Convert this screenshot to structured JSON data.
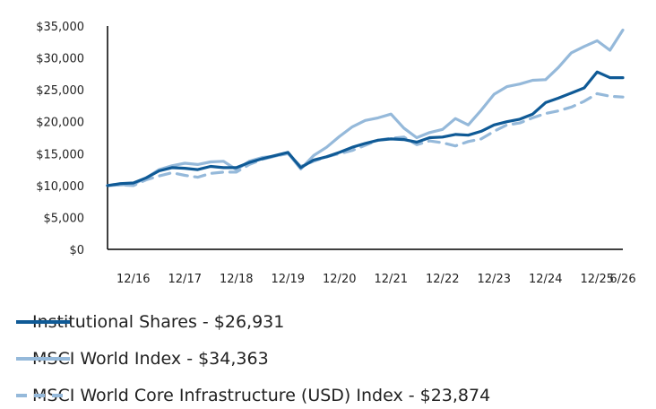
{
  "chart_data": {
    "type": "line",
    "title": "",
    "xlabel": "",
    "ylabel": "",
    "ylim": [
      0,
      35000
    ],
    "y_ticks": [
      "$0",
      "$5,000",
      "$10,000",
      "$15,000",
      "$20,000",
      "$25,000",
      "$30,000",
      "$35,000"
    ],
    "x_ticks": [
      "12/16",
      "12/17",
      "12/18",
      "12/19",
      "12/20",
      "12/21",
      "12/22",
      "12/23",
      "12/24",
      "12/25",
      "6/26"
    ],
    "xlim": [
      "6/16",
      "6/26"
    ],
    "grid": false,
    "legend_position": "bottom",
    "x": [
      "6/16",
      "9/16",
      "12/16",
      "3/17",
      "6/17",
      "9/17",
      "12/17",
      "3/18",
      "6/18",
      "9/18",
      "12/18",
      "3/19",
      "6/19",
      "9/19",
      "12/19",
      "3/20",
      "6/20",
      "9/20",
      "12/20",
      "3/21",
      "6/21",
      "9/21",
      "12/21",
      "3/22",
      "6/22",
      "9/22",
      "12/22",
      "3/23",
      "6/23",
      "9/23",
      "12/23",
      "3/24",
      "6/24",
      "9/24",
      "12/24",
      "3/25",
      "6/25",
      "9/25",
      "12/25",
      "3/26",
      "6/26"
    ],
    "series": [
      {
        "name": "Institutional Shares - $26,931",
        "color": "#0f5a96",
        "style": "solid",
        "values": [
          10000,
          10300,
          10400,
          11200,
          12300,
          12800,
          12700,
          12500,
          13000,
          12800,
          12800,
          13600,
          14200,
          14700,
          15200,
          12800,
          14000,
          14500,
          15200,
          16000,
          16600,
          17100,
          17300,
          17200,
          16800,
          17500,
          17600,
          18000,
          17900,
          18500,
          19500,
          20000,
          20400,
          21200,
          23000,
          23700,
          24500,
          25300,
          27800,
          26900,
          26900
        ]
      },
      {
        "name": "MSCI World Index - $34,363",
        "color": "#95b9da",
        "style": "solid",
        "values": [
          10000,
          10100,
          10200,
          11200,
          12500,
          13100,
          13500,
          13300,
          13700,
          13800,
          12500,
          13800,
          14400,
          14600,
          15100,
          12600,
          14700,
          16000,
          17700,
          19200,
          20200,
          20600,
          21200,
          19000,
          17500,
          18300,
          18800,
          20500,
          19500,
          21800,
          24300,
          25500,
          25900,
          26500,
          26600,
          28500,
          30800,
          31800,
          32700,
          31200,
          34363
        ]
      },
      {
        "name": "MSCI World Core Infrastructure (USD) Index - $23,874",
        "color": "#95b9da",
        "style": "dashed",
        "values": [
          10000,
          10100,
          10000,
          10900,
          11500,
          12000,
          11600,
          11300,
          11900,
          12100,
          12100,
          13300,
          14100,
          14600,
          15000,
          13000,
          13800,
          14500,
          15000,
          15500,
          16300,
          17100,
          17400,
          17600,
          16400,
          17000,
          16700,
          16200,
          16900,
          17300,
          18500,
          19500,
          19800,
          20600,
          21300,
          21700,
          22300,
          23200,
          24400,
          24000,
          23874
        ]
      }
    ]
  }
}
